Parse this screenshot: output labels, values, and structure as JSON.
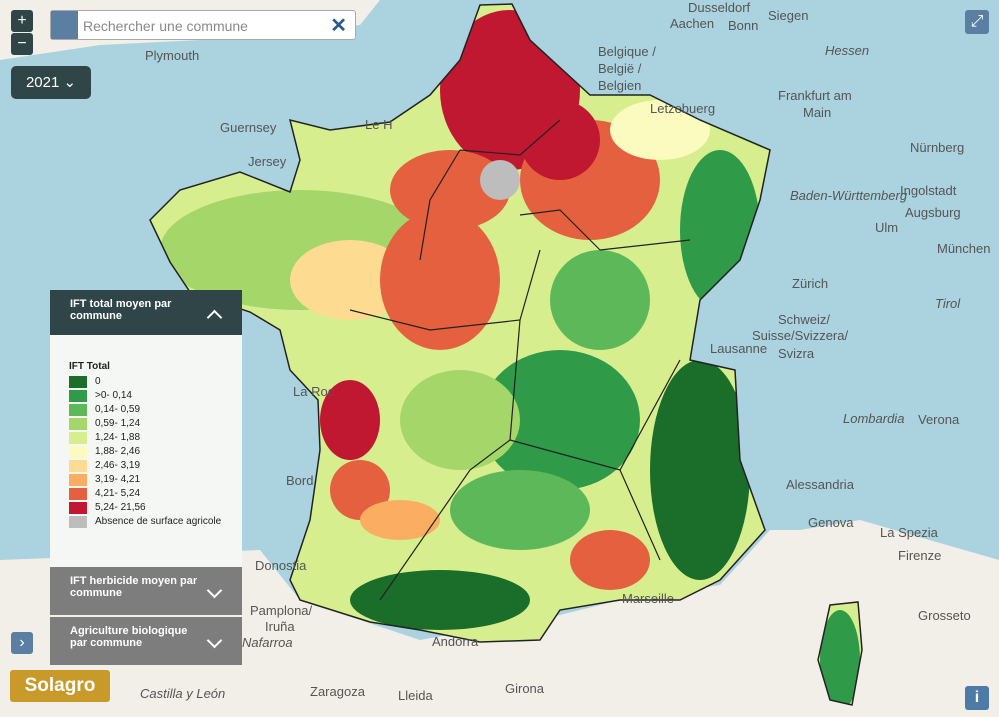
{
  "controls": {
    "zoom_in": "+",
    "zoom_out": "−",
    "search_placeholder": "Rechercher une commune",
    "year": "2021",
    "info": "i",
    "logo": "Solagro"
  },
  "panels": {
    "active": "IFT total moyen par commune",
    "herbicide": "IFT herbicide moyen par commune",
    "bio": "Agriculture biologique par commune"
  },
  "legend": {
    "title": "IFT Total",
    "items": [
      {
        "label": "0",
        "color": "#1a6e2a"
      },
      {
        "label": ">0- 0,14",
        "color": "#2f9a47"
      },
      {
        "label": "0,14- 0,59",
        "color": "#5db85a"
      },
      {
        "label": "0,59- 1,24",
        "color": "#a4d66a"
      },
      {
        "label": "1,24- 1,88",
        "color": "#d7ee8e"
      },
      {
        "label": "1,88- 2,46",
        "color": "#fbfbbf"
      },
      {
        "label": "2,46- 3,19",
        "color": "#fddc92"
      },
      {
        "label": "3,19- 4,21",
        "color": "#fbae62"
      },
      {
        "label": "4,21- 5,24",
        "color": "#e4603e"
      },
      {
        "label": "5,24- 21,56",
        "color": "#bf1830"
      },
      {
        "label": "Absence de surface agricole",
        "color": "#bdbdbd"
      }
    ]
  },
  "map_labels": [
    "Dusseldorf",
    "Aachen",
    "Bonn",
    "Siegen",
    "Plymouth",
    "Belgique /",
    "België /",
    "Belgien",
    "Letzebuerg",
    "Frankfurt am",
    "Main",
    "Hessen",
    "Nürnberg",
    "Guernsey",
    "Jersey",
    "Le H",
    "Ingolstadt",
    "Baden-Württemberg",
    "Augsburg",
    "Ulm",
    "München",
    "Zürich",
    "Tirol",
    "Schweiz/",
    "Suisse/Svizzera/",
    "Svizra",
    "Lausanne",
    "Lombardia",
    "Verona",
    "Alessandria",
    "Genova",
    "La Spezia",
    "Firenze",
    "Marseille",
    "Grosseto",
    "Zaragoza",
    "Lleida",
    "Girona",
    "Andorra",
    "Donostia",
    "Pamplona/",
    "Iruña",
    "Nafarroa",
    "Castilla y León",
    "La Roc",
    "Bord"
  ]
}
